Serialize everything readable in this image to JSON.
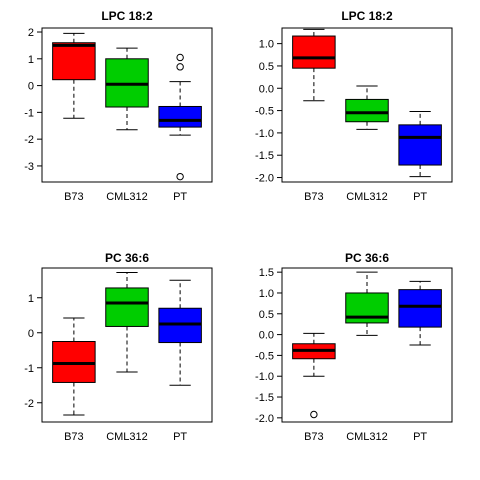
{
  "colors": {
    "B73": "#ff0000",
    "CML312": "#00cd00",
    "PT": "#0000ff",
    "frame": "#000000"
  },
  "chart_data": [
    {
      "type": "boxplot",
      "title": "LPC 18:2",
      "categories": [
        "B73",
        "CML312",
        "PT"
      ],
      "ylim": [
        -3.6,
        2.15
      ],
      "yticks": [
        -3,
        -2,
        -1,
        0,
        1,
        2
      ],
      "ytick_labels": [
        "-3",
        "-2",
        "-1",
        "0",
        "1",
        "2"
      ],
      "boxes": [
        {
          "name": "B73",
          "whisker_low": -1.22,
          "q1": 0.22,
          "median": 1.5,
          "q3": 1.6,
          "whisker_high": 1.95,
          "outliers": []
        },
        {
          "name": "CML312",
          "whisker_low": -1.65,
          "q1": -0.8,
          "median": 0.05,
          "q3": 1.0,
          "whisker_high": 1.4,
          "outliers": []
        },
        {
          "name": "PT",
          "whisker_low": -1.85,
          "q1": -1.55,
          "median": -1.3,
          "q3": -0.78,
          "whisker_high": 0.15,
          "outliers": [
            0.7,
            1.05,
            -3.4
          ]
        }
      ]
    },
    {
      "type": "boxplot",
      "title": "LPC 18:2",
      "categories": [
        "B73",
        "CML312",
        "PT"
      ],
      "ylim": [
        -2.1,
        1.35
      ],
      "yticks": [
        -2.0,
        -1.5,
        -1.0,
        -0.5,
        0.0,
        0.5,
        1.0
      ],
      "ytick_labels": [
        "-2.0",
        "-1.5",
        "-1.0",
        "-0.5",
        "0.0",
        "0.5",
        "1.0"
      ],
      "boxes": [
        {
          "name": "B73",
          "whisker_low": -0.28,
          "q1": 0.45,
          "median": 0.68,
          "q3": 1.17,
          "whisker_high": 1.32,
          "outliers": []
        },
        {
          "name": "CML312",
          "whisker_low": -0.92,
          "q1": -0.75,
          "median": -0.55,
          "q3": -0.25,
          "whisker_high": 0.05,
          "outliers": []
        },
        {
          "name": "PT",
          "whisker_low": -1.98,
          "q1": -1.72,
          "median": -1.1,
          "q3": -0.82,
          "whisker_high": -0.52,
          "outliers": []
        }
      ]
    },
    {
      "type": "boxplot",
      "title": "PC 36:6",
      "categories": [
        "B73",
        "CML312",
        "PT"
      ],
      "ylim": [
        -2.55,
        1.85
      ],
      "yticks": [
        -2,
        -1,
        0,
        1
      ],
      "ytick_labels": [
        "-2",
        "-1",
        "0",
        "1"
      ],
      "boxes": [
        {
          "name": "B73",
          "whisker_low": -2.35,
          "q1": -1.42,
          "median": -0.88,
          "q3": -0.25,
          "whisker_high": 0.42,
          "outliers": []
        },
        {
          "name": "CML312",
          "whisker_low": -1.12,
          "q1": 0.18,
          "median": 0.85,
          "q3": 1.28,
          "whisker_high": 1.72,
          "outliers": []
        },
        {
          "name": "PT",
          "whisker_low": -1.5,
          "q1": -0.28,
          "median": 0.25,
          "q3": 0.7,
          "whisker_high": 1.5,
          "outliers": []
        }
      ]
    },
    {
      "type": "boxplot",
      "title": "PC 36:6",
      "categories": [
        "B73",
        "CML312",
        "PT"
      ],
      "ylim": [
        -2.1,
        1.6
      ],
      "yticks": [
        -2.0,
        -1.5,
        -1.0,
        -0.5,
        0.0,
        0.5,
        1.0,
        1.5
      ],
      "ytick_labels": [
        "-2.0",
        "-1.5",
        "-1.0",
        "-0.5",
        "0.0",
        "0.5",
        "1.0",
        "1.5"
      ],
      "boxes": [
        {
          "name": "B73",
          "whisker_low": -1.0,
          "q1": -0.58,
          "median": -0.38,
          "q3": -0.22,
          "whisker_high": 0.03,
          "outliers": [
            -1.92
          ]
        },
        {
          "name": "CML312",
          "whisker_low": -0.02,
          "q1": 0.28,
          "median": 0.42,
          "q3": 1.0,
          "whisker_high": 1.5,
          "outliers": []
        },
        {
          "name": "PT",
          "whisker_low": -0.25,
          "q1": 0.18,
          "median": 0.68,
          "q3": 1.08,
          "whisker_high": 1.28,
          "outliers": []
        }
      ]
    }
  ]
}
